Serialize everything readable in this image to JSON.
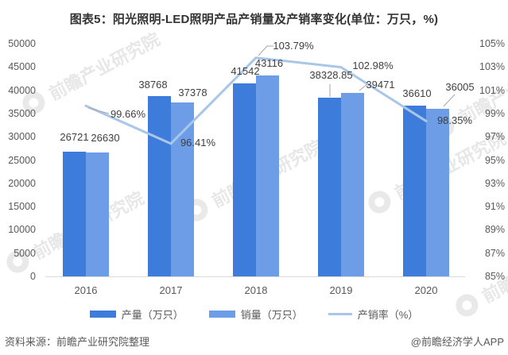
{
  "title": "图表5：阳光照明-LED照明产品产销量及产销率变化(单位：万只，%)",
  "chart_data": {
    "type": "combo-bar-line",
    "title": "图表5：阳光照明-LED照明产品产销量及产销率变化(单位：万只，%)",
    "categories": [
      "2016",
      "2017",
      "2018",
      "2019",
      "2020"
    ],
    "series": [
      {
        "name": "产量（万只）",
        "type": "bar",
        "color": "#3d7cda",
        "axis": "left",
        "values": [
          26721,
          38768,
          41542,
          38328.85,
          36610
        ],
        "data_labels": [
          "26721",
          "38768",
          "41542",
          "38328.85",
          "36610"
        ]
      },
      {
        "name": "销量（万只）",
        "type": "bar",
        "color": "#6d9de6",
        "axis": "left",
        "values": [
          26630,
          37378,
          43116,
          39471,
          36005
        ],
        "data_labels": [
          "26630",
          "37378",
          "43116",
          "39471",
          "36005"
        ]
      },
      {
        "name": "产销率（%）",
        "type": "line",
        "color": "#a8c6e8",
        "axis": "right",
        "values": [
          99.66,
          96.41,
          103.79,
          102.98,
          98.35
        ],
        "data_labels": [
          "99.66%",
          "96.41%",
          "103.79%",
          "102.98%",
          "98.35%"
        ]
      }
    ],
    "axis_left": {
      "min": 0,
      "max": 50000,
      "step": 5000,
      "tick_labels": [
        "0",
        "5000",
        "10000",
        "15000",
        "20000",
        "25000",
        "30000",
        "35000",
        "40000",
        "45000",
        "50000"
      ]
    },
    "axis_right": {
      "min": 85,
      "max": 105,
      "step": 2,
      "tick_labels": [
        "85%",
        "87%",
        "89%",
        "91%",
        "93%",
        "95%",
        "97%",
        "99%",
        "101%",
        "103%",
        "105%"
      ]
    },
    "legend_position": "bottom",
    "grid": false
  },
  "watermark": {
    "text": "前瞻产业研究院"
  },
  "footer": {
    "source": "资料来源：前瞻产业研究院整理",
    "brand": "@前瞻经济学人APP"
  }
}
